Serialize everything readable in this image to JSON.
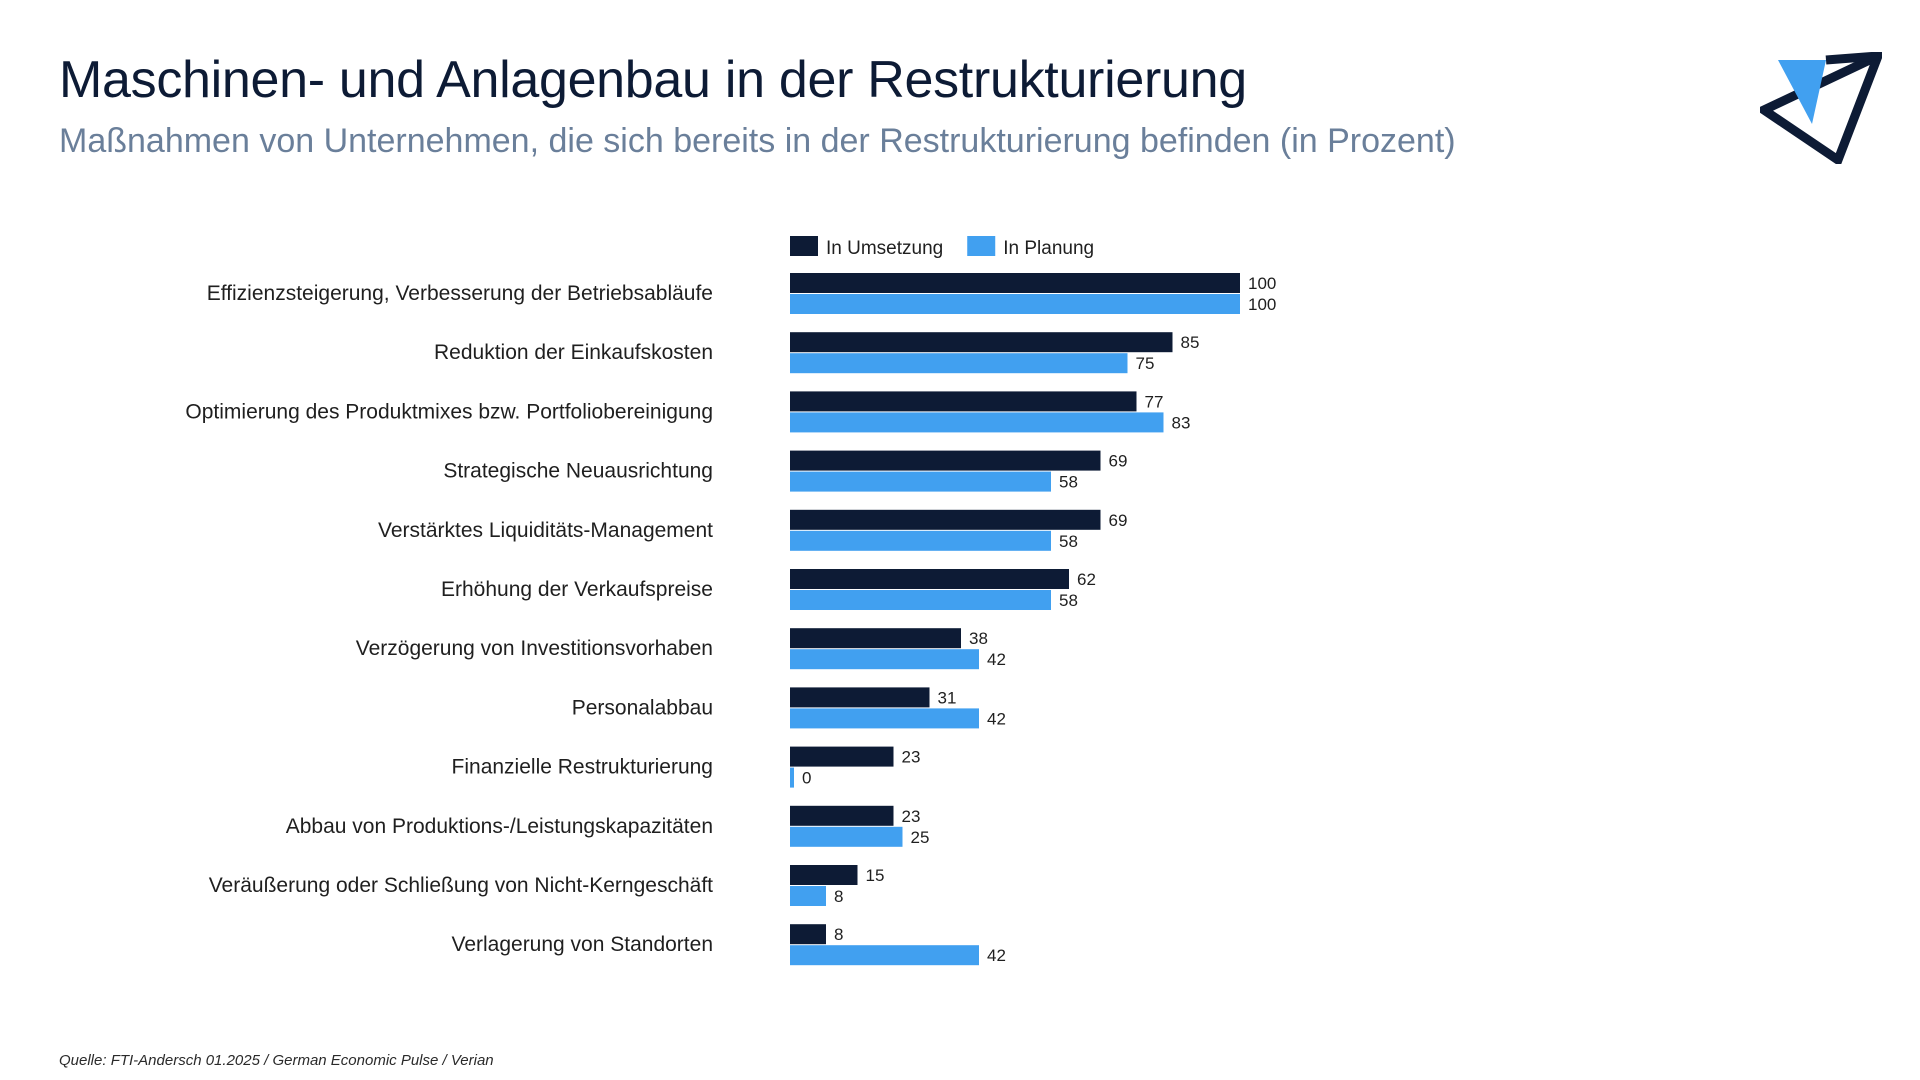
{
  "header": {
    "title": "Maschinen- und Anlagenbau in der Restrukturierung",
    "subtitle": "Maßnahmen von Unternehmen, die sich bereits in der Restrukturierung befinden (in Prozent)"
  },
  "logo": {
    "icon": "triangle-arrow-logo-icon",
    "colors": [
      "#0d1b35",
      "#41a0f0"
    ]
  },
  "footer": {
    "source": "Quelle: FTI-Andersch 01.2025 / German Economic Pulse / Verian"
  },
  "chart_data": {
    "type": "bar",
    "orientation": "horizontal",
    "categories": [
      "Effizienzsteigerung, Verbesserung der Betriebsabläufe",
      "Reduktion der Einkaufskosten",
      "Optimierung des Produktmixes bzw. Portfoliobereinigung",
      "Strategische Neuausrichtung",
      "Verstärktes Liquiditäts-Management",
      "Erhöhung der Verkaufspreise",
      "Verzögerung von Investitionsvorhaben",
      "Personalabbau",
      "Finanzielle Restrukturierung",
      "Abbau von Produktions-/Leistungskapazitäten",
      "Veräußerung oder Schließung von Nicht-Kerngeschäft",
      "Verlagerung von Standorten"
    ],
    "series": [
      {
        "name": "In Umsetzung",
        "color": "#0d1b35",
        "values": [
          100,
          85,
          77,
          69,
          69,
          62,
          38,
          31,
          23,
          23,
          15,
          8
        ]
      },
      {
        "name": "In Planung",
        "color": "#41a0f0",
        "values": [
          100,
          75,
          83,
          58,
          58,
          58,
          42,
          42,
          0,
          25,
          8,
          42
        ]
      }
    ],
    "xlim": [
      0,
      100
    ],
    "grid": false,
    "legend": "top",
    "data_labels": true
  }
}
